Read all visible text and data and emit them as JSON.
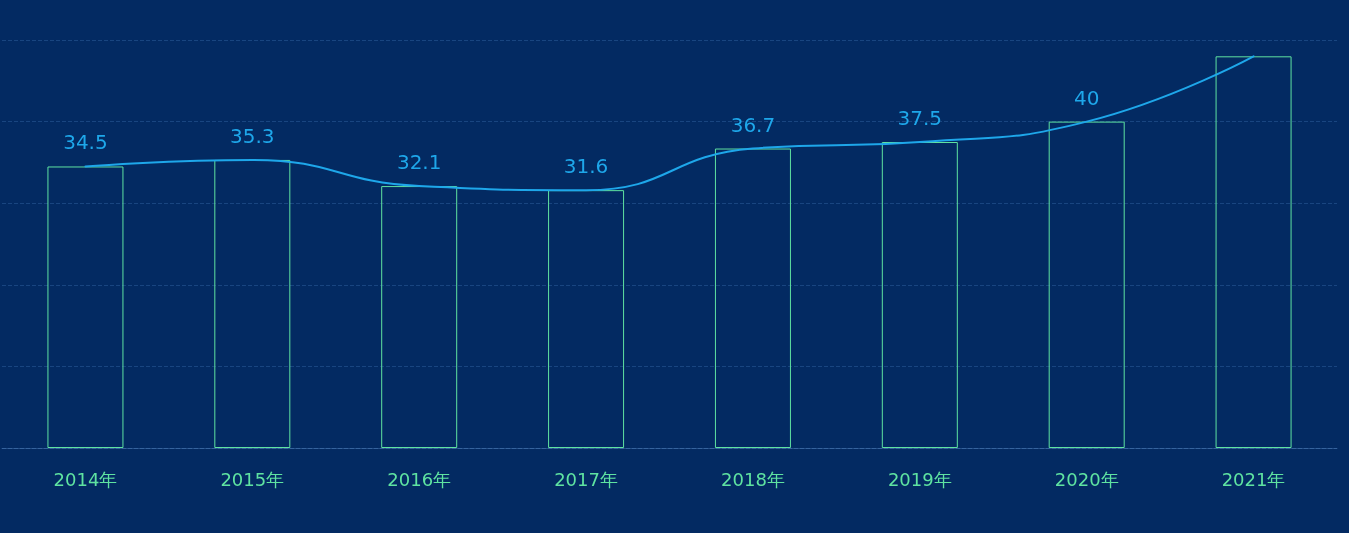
{
  "chart_data": {
    "type": "bar",
    "categories": [
      "2014年",
      "2015年",
      "2016年",
      "2017年",
      "2018年",
      "2019年",
      "2020年",
      "2021年"
    ],
    "series": [
      {
        "color": "#5fe3a1",
        "values": [
          34.5,
          35.3,
          32.1,
          31.6,
          36.7,
          37.5,
          40,
          48
        ]
      },
      {
        "type": "line",
        "color": "#1ea7ea",
        "values": [
          34.5,
          35.3,
          32.1,
          31.6,
          36.7,
          37.5,
          40,
          48
        ],
        "value_labels": [
          "34.5",
          "35.3",
          "32.1",
          "31.6",
          "36.7",
          "37.5",
          "40",
          null
        ]
      }
    ],
    "ylim": [
      0,
      50
    ],
    "yticks": [
      {
        "value": 0,
        "label": null
      },
      {
        "value": 10,
        "label": null
      },
      {
        "value": 20,
        "label": null
      },
      {
        "value": 30,
        "label": null
      },
      {
        "value": 40,
        "label": null
      },
      {
        "value": 50,
        "label": null
      }
    ],
    "tick_labels": "x",
    "grid": "y",
    "marker": "none",
    "line_style": "solid"
  }
}
